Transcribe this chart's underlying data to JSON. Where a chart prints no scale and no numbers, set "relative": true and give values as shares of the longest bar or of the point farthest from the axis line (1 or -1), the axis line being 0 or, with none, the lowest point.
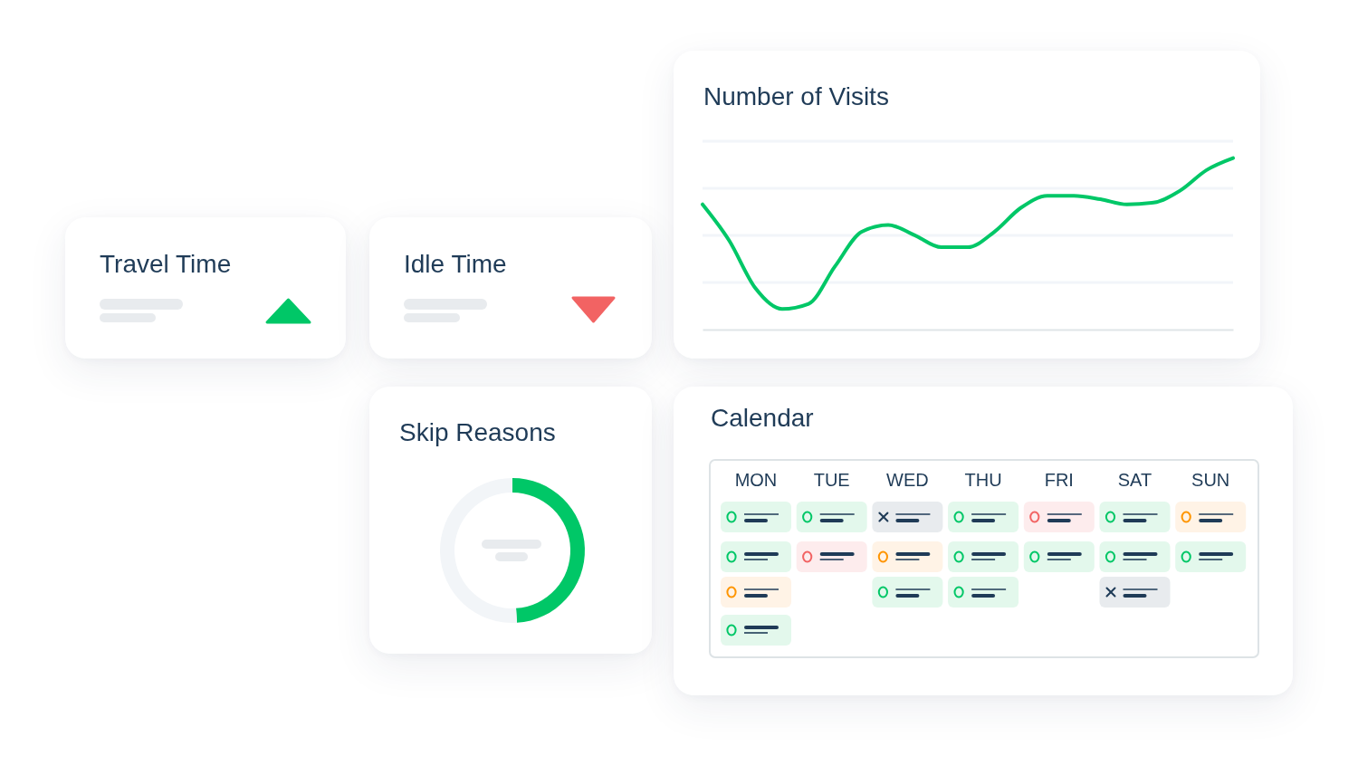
{
  "chart_data": [
    {
      "type": "other",
      "title": "Travel Time"
    },
    {
      "type": "other",
      "title": "Idle Time"
    },
    {
      "type": "line",
      "title": "Number of Visits",
      "relative": true,
      "grid": true,
      "color": "#00c767",
      "categories": [
        null,
        null,
        null,
        null,
        null,
        null,
        null,
        null,
        null,
        null,
        null,
        null,
        null,
        null,
        null,
        null,
        null,
        null,
        null,
        null,
        null
      ],
      "values": [
        0.73,
        0.52,
        0.24,
        0.12,
        0.15,
        0.37,
        0.57,
        0.61,
        0.55,
        0.48,
        0.48,
        0.57,
        0.71,
        0.78,
        0.78,
        0.76,
        0.73,
        0.74,
        0.81,
        0.93,
        1
      ]
    },
    {
      "type": "donut",
      "title": "Skip Reasons",
      "categories": [
        null,
        null
      ],
      "values": [
        49,
        51
      ],
      "colors": [
        "#00c767",
        "#f2f5f8"
      ]
    },
    {
      "type": "other",
      "title": "Calendar",
      "categories": [
        "MON",
        "TUE",
        "WED",
        "THU",
        "FRI",
        "SAT",
        "SUN"
      ]
    }
  ]
}
